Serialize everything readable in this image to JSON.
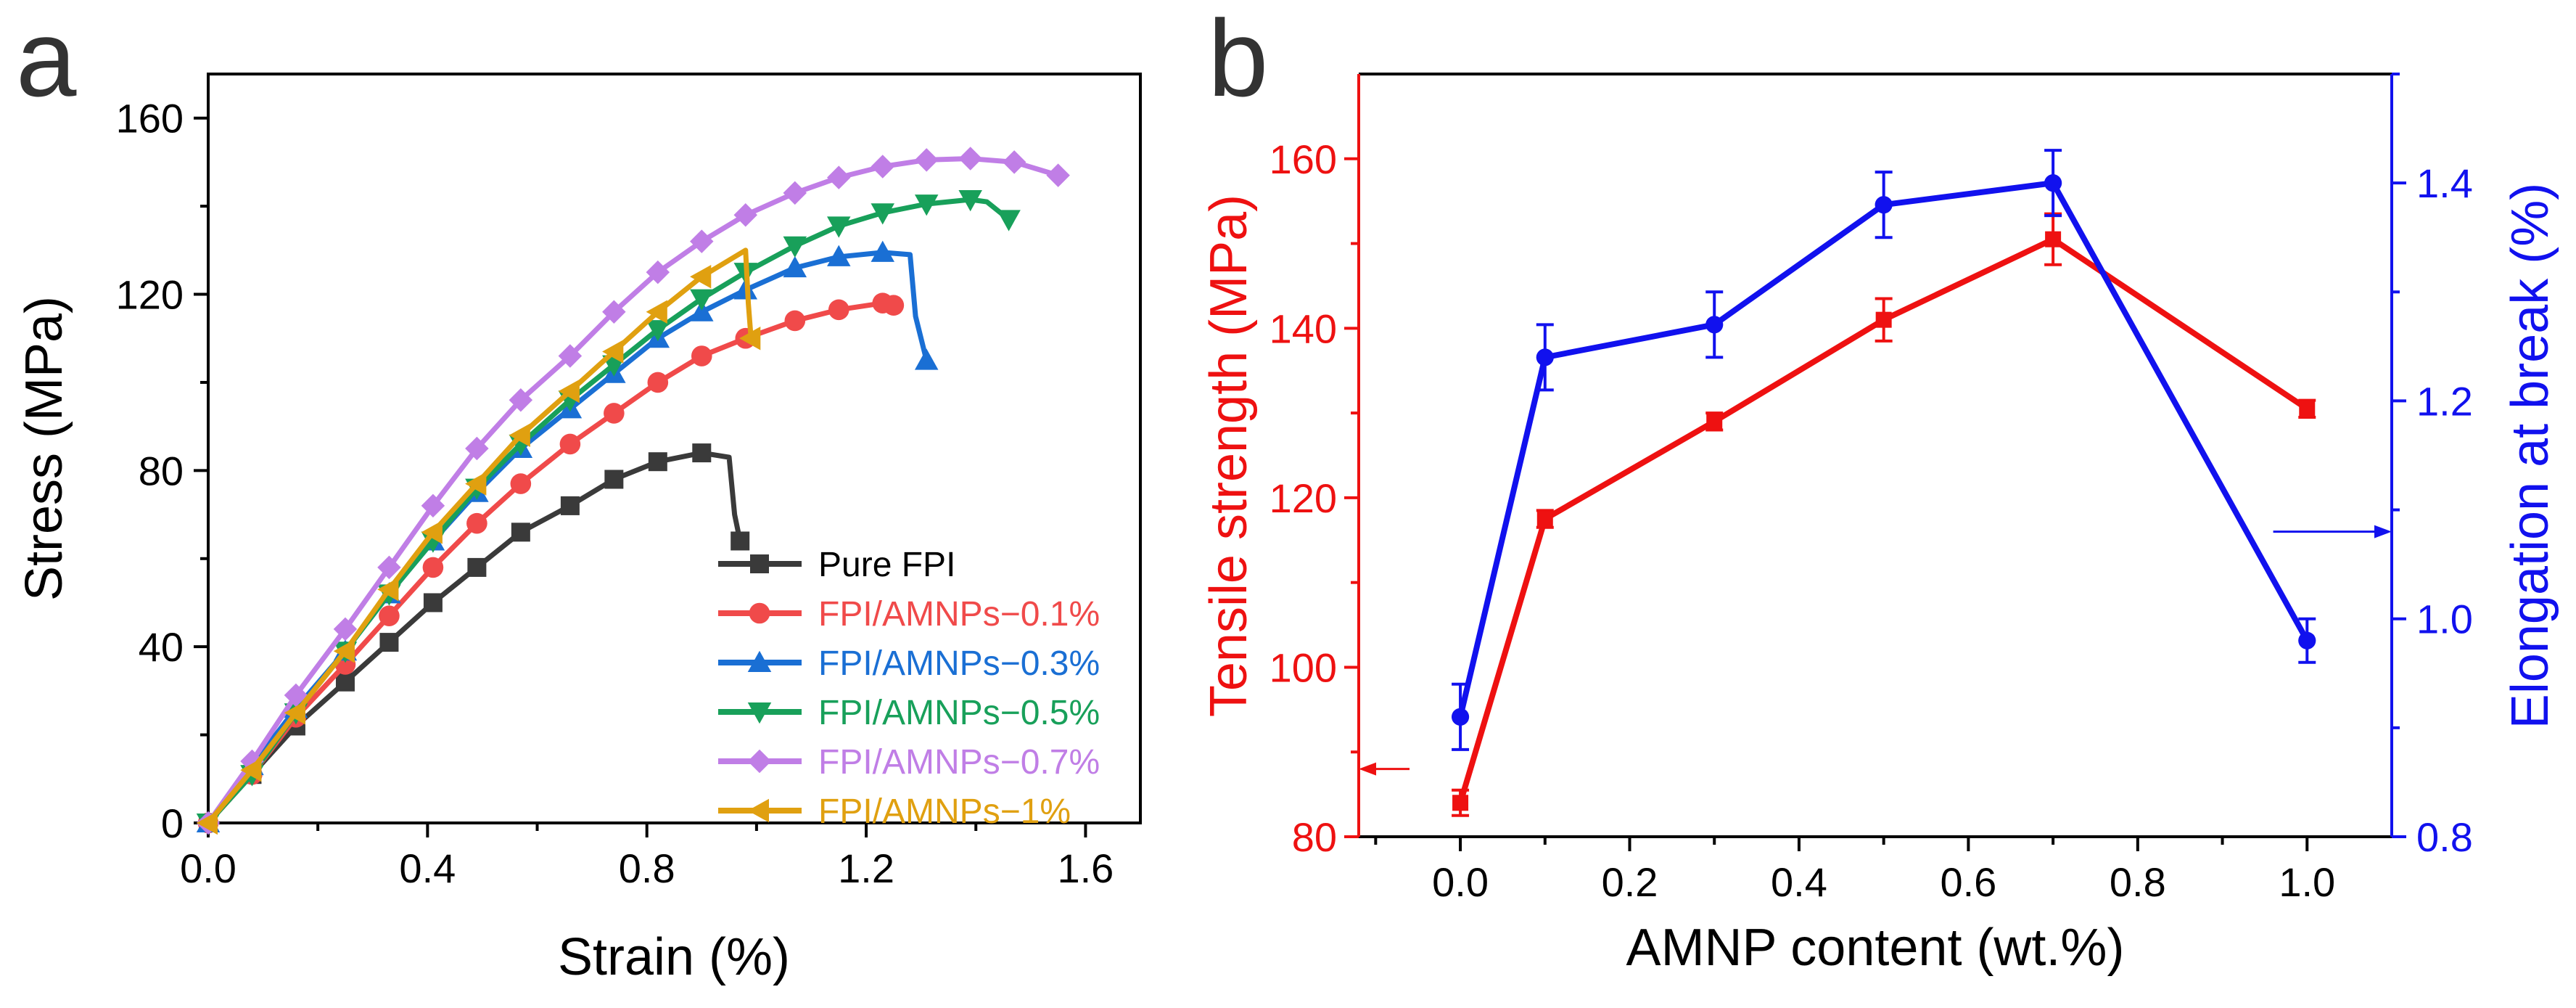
{
  "panel_a": {
    "letter": "a"
  },
  "panel_b": {
    "letter": "b"
  },
  "colors": {
    "pure": "#3a3a3a",
    "p01": "#f04a4a",
    "p03": "#1a6fd4",
    "p05": "#18a05a",
    "p07": "#c07ee6",
    "p1": "#e0a010",
    "red": "#ee1111",
    "blue": "#1111ee",
    "axis": "#000000"
  },
  "chart_data": [
    {
      "type": "line",
      "title": "",
      "xlabel": "Strain (%)",
      "ylabel": "Stress (MPa)",
      "xlim": [
        0,
        1.7
      ],
      "ylim": [
        0,
        170
      ],
      "xticks": [
        0.0,
        0.4,
        0.8,
        1.2,
        1.6
      ],
      "xtick_labels": [
        "0.0",
        "0.4",
        "0.8",
        "1.2",
        "1.6"
      ],
      "yticks": [
        0,
        40,
        80,
        120,
        160
      ],
      "ytick_labels": [
        "0",
        "40",
        "80",
        "120",
        "160"
      ],
      "legend_position": "bottom-right",
      "series": [
        {
          "name": "Pure FPI",
          "color": "#3a3a3a",
          "marker": "square",
          "x": [
            0.0,
            0.08,
            0.16,
            0.25,
            0.33,
            0.41,
            0.49,
            0.57,
            0.66,
            0.74,
            0.82,
            0.9,
            0.95,
            0.96,
            0.97
          ],
          "y": [
            0,
            11,
            22,
            32,
            41,
            50,
            58,
            66,
            72,
            78,
            82,
            84,
            83,
            70,
            64
          ],
          "markers_x": [
            0.0,
            0.08,
            0.16,
            0.25,
            0.33,
            0.41,
            0.49,
            0.57,
            0.66,
            0.74,
            0.82,
            0.9,
            0.97
          ],
          "markers_y": [
            0,
            11,
            22,
            32,
            41,
            50,
            58,
            66,
            72,
            78,
            82,
            84,
            64
          ]
        },
        {
          "name": "FPI/AMNPs−0.1%",
          "color": "#f04a4a",
          "marker": "circle",
          "x": [
            0.0,
            0.08,
            0.16,
            0.25,
            0.33,
            0.41,
            0.49,
            0.57,
            0.66,
            0.74,
            0.82,
            0.9,
            0.98,
            1.07,
            1.15,
            1.23,
            1.25
          ],
          "y": [
            0,
            11,
            24,
            36,
            47,
            58,
            68,
            77,
            86,
            93,
            100,
            106,
            110,
            114,
            116.5,
            118,
            117.5
          ],
          "markers_x": [
            0.0,
            0.08,
            0.16,
            0.25,
            0.33,
            0.41,
            0.49,
            0.57,
            0.66,
            0.74,
            0.82,
            0.9,
            0.98,
            1.07,
            1.15,
            1.23,
            1.25
          ],
          "markers_y": [
            0,
            11,
            24,
            36,
            47,
            58,
            68,
            77,
            86,
            93,
            100,
            106,
            110,
            114,
            116.5,
            118,
            117.5
          ]
        },
        {
          "name": "FPI/AMNPs−0.3%",
          "color": "#1a6fd4",
          "marker": "triangle-up",
          "x": [
            0.0,
            0.08,
            0.16,
            0.25,
            0.33,
            0.41,
            0.49,
            0.57,
            0.66,
            0.74,
            0.82,
            0.9,
            0.98,
            1.07,
            1.15,
            1.23,
            1.28,
            1.29,
            1.31
          ],
          "y": [
            0,
            13,
            26,
            39,
            52,
            64,
            75,
            85,
            94,
            102,
            110,
            116,
            121,
            126,
            128.5,
            129.5,
            129,
            115,
            105
          ],
          "markers_x": [
            0.0,
            0.08,
            0.16,
            0.25,
            0.33,
            0.41,
            0.49,
            0.57,
            0.66,
            0.74,
            0.82,
            0.9,
            0.98,
            1.07,
            1.15,
            1.23,
            1.31
          ],
          "markers_y": [
            0,
            13,
            26,
            39,
            52,
            64,
            75,
            85,
            94,
            102,
            110,
            116,
            121,
            126,
            128.5,
            129.5,
            105
          ]
        },
        {
          "name": "FPI/AMNPs−0.5%",
          "color": "#18a05a",
          "marker": "triangle-down",
          "x": [
            0.0,
            0.08,
            0.16,
            0.25,
            0.33,
            0.41,
            0.49,
            0.57,
            0.66,
            0.74,
            0.82,
            0.9,
            0.98,
            1.07,
            1.15,
            1.23,
            1.31,
            1.39,
            1.42,
            1.46
          ],
          "y": [
            0,
            11,
            25,
            39,
            52,
            64,
            76,
            86,
            96,
            104,
            112,
            119,
            125,
            131,
            135.5,
            138.5,
            140.5,
            141.5,
            141,
            137
          ],
          "markers_x": [
            0.0,
            0.08,
            0.16,
            0.25,
            0.33,
            0.41,
            0.49,
            0.57,
            0.66,
            0.74,
            0.82,
            0.9,
            0.98,
            1.07,
            1.15,
            1.23,
            1.31,
            1.39,
            1.46
          ],
          "markers_y": [
            0,
            11,
            25,
            39,
            52,
            64,
            76,
            86,
            96,
            104,
            112,
            119,
            125,
            131,
            135.5,
            138.5,
            140.5,
            141.5,
            137
          ]
        },
        {
          "name": "FPI/AMNPs−0.7%",
          "color": "#c07ee6",
          "marker": "diamond",
          "x": [
            0.0,
            0.08,
            0.16,
            0.25,
            0.33,
            0.41,
            0.49,
            0.57,
            0.66,
            0.74,
            0.82,
            0.9,
            0.98,
            1.07,
            1.15,
            1.23,
            1.31,
            1.39,
            1.47,
            1.55
          ],
          "y": [
            0,
            14,
            29,
            44,
            58,
            72,
            85,
            96,
            106,
            116,
            125,
            132,
            138,
            143,
            146.5,
            149,
            150.5,
            150.8,
            150,
            147
          ],
          "markers_x": [
            0.0,
            0.08,
            0.16,
            0.25,
            0.33,
            0.41,
            0.49,
            0.57,
            0.66,
            0.74,
            0.82,
            0.9,
            0.98,
            1.07,
            1.15,
            1.23,
            1.31,
            1.39,
            1.47,
            1.55
          ],
          "markers_y": [
            0,
            14,
            29,
            44,
            58,
            72,
            85,
            96,
            106,
            116,
            125,
            132,
            138,
            143,
            146.5,
            149,
            150.5,
            150.8,
            150,
            147
          ]
        },
        {
          "name": "FPI/AMNPs−1%",
          "color": "#e0a010",
          "marker": "triangle-left",
          "x": [
            0.0,
            0.08,
            0.16,
            0.25,
            0.33,
            0.41,
            0.49,
            0.57,
            0.66,
            0.74,
            0.82,
            0.9,
            0.98,
            0.985,
            0.99
          ],
          "y": [
            0,
            12,
            25,
            39,
            53,
            66,
            77,
            88,
            98,
            107,
            116,
            124,
            130,
            118,
            110
          ],
          "markers_x": [
            0.0,
            0.08,
            0.16,
            0.25,
            0.33,
            0.41,
            0.49,
            0.57,
            0.66,
            0.74,
            0.82,
            0.9,
            0.99
          ],
          "markers_y": [
            0,
            12,
            25,
            39,
            53,
            66,
            77,
            88,
            98,
            107,
            116,
            124,
            110
          ]
        }
      ]
    },
    {
      "type": "line",
      "title": "",
      "xlabel": "AMNP content (wt.%)",
      "ylabel": "Tensile strength (MPa)",
      "ylabel_right": "Elongation at break (%)",
      "xlim": [
        -0.12,
        1.1
      ],
      "ylim": [
        80,
        170
      ],
      "ylim_right": [
        0.8,
        1.5
      ],
      "xticks": [
        0.0,
        0.2,
        0.4,
        0.6,
        0.8,
        1.0
      ],
      "xtick_labels": [
        "0.0",
        "0.2",
        "0.4",
        "0.6",
        "0.8",
        "1.0"
      ],
      "yticks": [
        80,
        100,
        120,
        140,
        160
      ],
      "ytick_labels": [
        "80",
        "100",
        "120",
        "140",
        "160"
      ],
      "yticks_right": [
        0.8,
        1.0,
        1.2,
        1.4
      ],
      "ytick_labels_right": [
        "0.8",
        "1.0",
        "1.2",
        "1.4"
      ],
      "series": [
        {
          "name": "Tensile strength",
          "axis": "left",
          "color": "#ee1111",
          "marker": "square",
          "x": [
            0.0,
            0.1,
            0.3,
            0.5,
            0.7,
            1.0
          ],
          "y": [
            84,
            117.5,
            129,
            141,
            150.5,
            130.5
          ],
          "err": [
            1.5,
            1.0,
            1.0,
            2.5,
            3.0,
            1.0
          ]
        },
        {
          "name": "Elongation at break",
          "axis": "right",
          "color": "#1111ee",
          "marker": "circle",
          "x": [
            0.0,
            0.1,
            0.3,
            0.5,
            0.7,
            1.0
          ],
          "y": [
            0.91,
            1.24,
            1.27,
            1.38,
            1.4,
            0.98
          ],
          "err": [
            0.03,
            0.03,
            0.03,
            0.03,
            0.03,
            0.02
          ]
        }
      ],
      "annotations": [
        {
          "text": "left-axis arrow",
          "series": "Tensile strength",
          "at_x": -0.12,
          "at_y": 88,
          "tail_x": -0.06
        },
        {
          "text": "right-axis arrow",
          "series": "Elongation at break",
          "at_x": 1.1,
          "at_y": 1.08,
          "tail_x": 0.96
        }
      ]
    }
  ]
}
